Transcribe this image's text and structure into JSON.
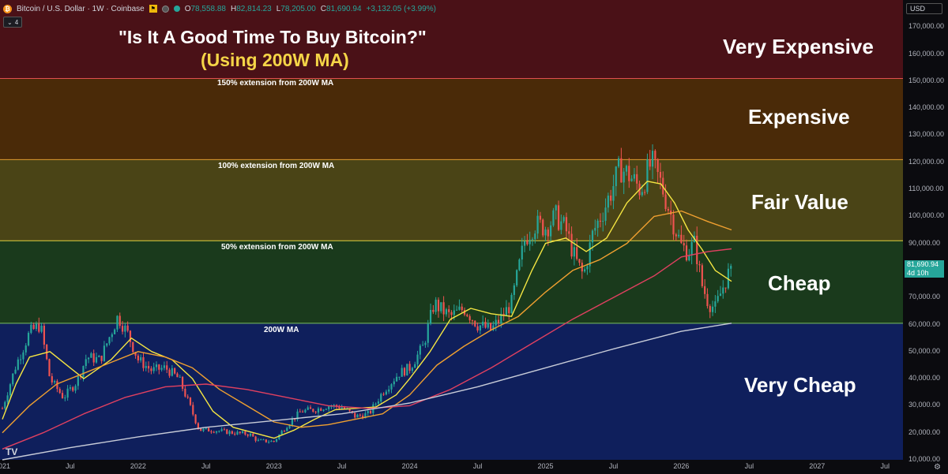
{
  "header": {
    "symbol": "Bitcoin / U.S. Dollar · 1W · Coinbase",
    "open_label": "O",
    "open": "78,558.88",
    "high_label": "H",
    "high": "82,814.23",
    "low_label": "L",
    "low": "78,205.00",
    "close_label": "C",
    "close": "81,690.94",
    "change": "+3,132.05 (+3.99%)",
    "indicator_count": "4",
    "icons": [
      "bitcoin-logo-icon",
      "flag-icon",
      "market-open-icon",
      "chevron-down-icon"
    ]
  },
  "title": {
    "line1": "\"Is It A Good Time To Buy Bitcoin?\"",
    "line2": "(Using 200W MA)"
  },
  "zones": [
    {
      "label": "Very Expensive",
      "from": 151000,
      "to": 180000,
      "color": "#4a1117"
    },
    {
      "label": "Expensive",
      "from": 121000,
      "to": 151000,
      "color": "#4a2a08"
    },
    {
      "label": "Fair Value",
      "from": 91000,
      "to": 121000,
      "color": "#4a4416"
    },
    {
      "label": "Cheap",
      "from": 60500,
      "to": 91000,
      "color": "#1a3a1c"
    },
    {
      "label": "Very Cheap",
      "from": 0,
      "to": 60500,
      "color": "#0f1f5c"
    }
  ],
  "extension_labels": [
    {
      "text": "150% extension from 200W MA",
      "value": 151000
    },
    {
      "text": "100% extension from 200W MA",
      "value": 121000
    },
    {
      "text": "50% extension from 200W MA",
      "value": 91000
    },
    {
      "text": "200W MA",
      "value": 60500
    }
  ],
  "axis": {
    "currency": "USD",
    "current_price": "81,690.94",
    "countdown": "4d 10h"
  },
  "chart_data": {
    "type": "line",
    "title": "\"Is It A Good Time To Buy Bitcoin?\" (Using 200W MA)",
    "xlabel": "",
    "ylabel": "",
    "ylim": [
      10000,
      180000
    ],
    "xlim": [
      2021.0,
      2027.65
    ],
    "y_ticks": [
      10000,
      20000,
      30000,
      40000,
      50000,
      60000,
      70000,
      80000,
      90000,
      100000,
      110000,
      120000,
      130000,
      140000,
      150000,
      160000,
      170000
    ],
    "y_tick_labels": [
      "10,000.00",
      "20,000.00",
      "30,000.00",
      "40,000.00",
      "50,000.00",
      "60,000.00",
      "70,000.00",
      "80,000.00",
      "90,000.00",
      "100,000.00",
      "110,000.00",
      "120,000.00",
      "130,000.00",
      "140,000.00",
      "150,000.00",
      "160,000.00",
      "170,000.00"
    ],
    "x_ticks": [
      2021.0,
      2021.5,
      2022.0,
      2022.5,
      2023.0,
      2023.5,
      2024.0,
      2024.5,
      2025.0,
      2025.5,
      2026.0,
      2026.5,
      2027.0,
      2027.5
    ],
    "x_tick_labels": [
      "2021",
      "Jul",
      "2022",
      "Jul",
      "2023",
      "Jul",
      "2024",
      "Jul",
      "2025",
      "Jul",
      "2026",
      "Jul",
      "2027",
      "Jul"
    ],
    "grid": false,
    "price": {
      "x": [
        2021.0,
        2021.1,
        2021.2,
        2021.28,
        2021.35,
        2021.45,
        2021.55,
        2021.62,
        2021.72,
        2021.85,
        2021.92,
        2022.0,
        2022.1,
        2022.2,
        2022.3,
        2022.38,
        2022.45,
        2022.55,
        2022.7,
        2022.82,
        2022.88,
        2023.0,
        2023.1,
        2023.2,
        2023.3,
        2023.4,
        2023.5,
        2023.6,
        2023.7,
        2023.8,
        2023.92,
        2024.0,
        2024.1,
        2024.18,
        2024.22,
        2024.3,
        2024.4,
        2024.5,
        2024.6,
        2024.68,
        2024.75,
        2024.85,
        2024.92,
        2025.0,
        2025.08,
        2025.15,
        2025.22,
        2025.28,
        2025.35,
        2025.45,
        2025.55,
        2025.62,
        2025.7,
        2025.78,
        2025.85,
        2025.92,
        2026.0,
        2026.05,
        2026.1,
        2026.15,
        2026.2,
        2026.25,
        2026.3,
        2026.37
      ],
      "y": [
        29000,
        45000,
        57000,
        60000,
        40000,
        33000,
        39000,
        48000,
        47000,
        63000,
        57000,
        47000,
        43000,
        44000,
        40000,
        30000,
        21000,
        21000,
        20000,
        19500,
        17000,
        16800,
        23000,
        28000,
        28500,
        30000,
        29500,
        26000,
        27000,
        35000,
        42000,
        44000,
        52000,
        68000,
        66000,
        63000,
        66000,
        60000,
        58000,
        63000,
        68000,
        92000,
        97000,
        96000,
        100000,
        95000,
        84000,
        78000,
        94000,
        105000,
        118000,
        115000,
        110000,
        120000,
        112000,
        101000,
        89000,
        87000,
        90000,
        75000,
        68000,
        66000,
        73000,
        81690
      ]
    },
    "series": [
      {
        "color": "#f5e642",
        "x": [
          2021.0,
          2021.1,
          2021.2,
          2021.35,
          2021.5,
          2021.6,
          2021.8,
          2021.95,
          2022.1,
          2022.25,
          2022.4,
          2022.55,
          2022.7,
          2022.85,
          2023.0,
          2023.15,
          2023.3,
          2023.45,
          2023.6,
          2023.75,
          2023.9,
          2024.0,
          2024.15,
          2024.3,
          2024.45,
          2024.6,
          2024.75,
          2024.9,
          2025.0,
          2025.15,
          2025.3,
          2025.45,
          2025.6,
          2025.75,
          2025.85,
          2025.95,
          2026.05,
          2026.15,
          2026.25,
          2026.37
        ],
        "y": [
          25000,
          38000,
          48000,
          50000,
          44000,
          40000,
          47000,
          55000,
          50000,
          47000,
          40000,
          28000,
          22000,
          20000,
          18000,
          21000,
          25000,
          28500,
          29000,
          29500,
          34000,
          40000,
          50000,
          62000,
          66000,
          64000,
          63000,
          80000,
          90000,
          92000,
          87000,
          92000,
          105000,
          113000,
          112000,
          105000,
          95000,
          88000,
          80000,
          76000
        ]
      },
      {
        "color": "#f0a030",
        "x": [
          2021.0,
          2021.2,
          2021.4,
          2021.6,
          2021.8,
          2022.0,
          2022.2,
          2022.4,
          2022.6,
          2022.8,
          2023.0,
          2023.2,
          2023.4,
          2023.6,
          2023.8,
          2024.0,
          2024.2,
          2024.4,
          2024.6,
          2024.8,
          2025.0,
          2025.2,
          2025.4,
          2025.6,
          2025.8,
          2026.0,
          2026.2,
          2026.37
        ],
        "y": [
          20000,
          30000,
          38000,
          42000,
          46000,
          50000,
          48000,
          44000,
          36000,
          30000,
          24000,
          22000,
          23000,
          25000,
          27000,
          34000,
          45000,
          52000,
          58000,
          63000,
          72000,
          80000,
          84000,
          90000,
          100000,
          102000,
          98000,
          95000
        ]
      },
      {
        "color": "#e04060",
        "x": [
          2021.0,
          2021.3,
          2021.6,
          2021.9,
          2022.2,
          2022.5,
          2022.8,
          2023.1,
          2023.4,
          2023.7,
          2024.0,
          2024.3,
          2024.6,
          2024.9,
          2025.2,
          2025.5,
          2025.8,
          2026.0,
          2026.2,
          2026.37
        ],
        "y": [
          14000,
          20000,
          27000,
          33000,
          37000,
          38000,
          36000,
          33000,
          30000,
          29000,
          30000,
          36000,
          44000,
          53000,
          62000,
          70000,
          78000,
          85000,
          87000,
          88000
        ]
      },
      {
        "color": "#c8ccd8",
        "x": [
          2021.0,
          2021.5,
          2022.0,
          2022.5,
          2023.0,
          2023.5,
          2024.0,
          2024.5,
          2025.0,
          2025.5,
          2026.0,
          2026.37
        ],
        "y": [
          10000,
          14500,
          18500,
          22000,
          24500,
          27000,
          31000,
          37000,
          44000,
          51000,
          57500,
          60500
        ]
      }
    ]
  }
}
